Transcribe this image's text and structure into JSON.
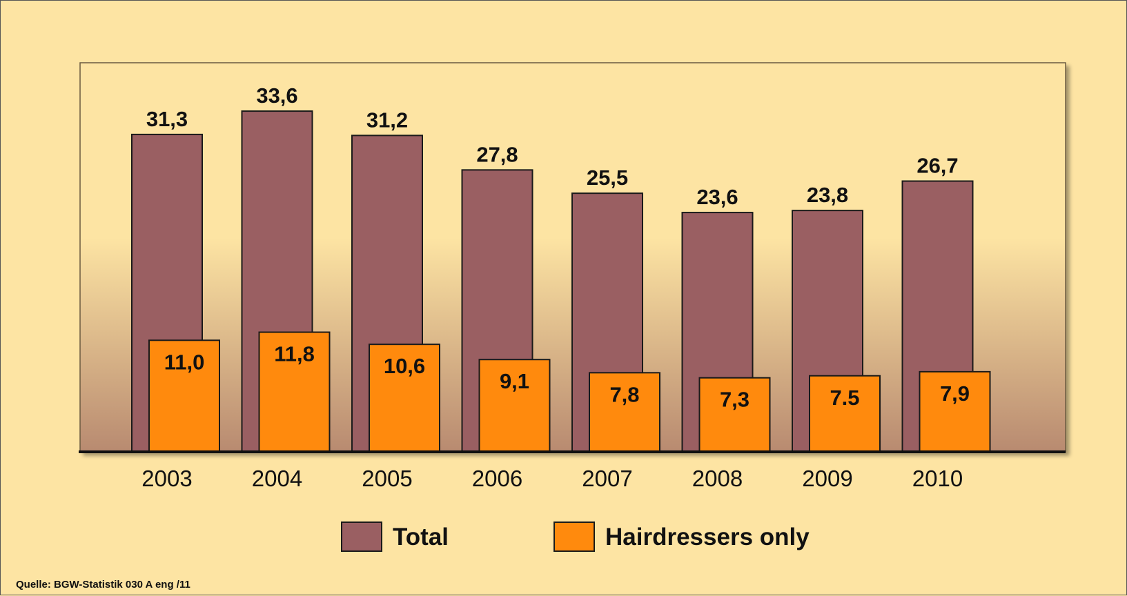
{
  "chart_data": {
    "type": "bar",
    "categories": [
      "2003",
      "2004",
      "2005",
      "2006",
      "2007",
      "2008",
      "2009",
      "2010"
    ],
    "series": [
      {
        "name": "Total",
        "values": [
          31.3,
          33.6,
          31.2,
          27.8,
          25.5,
          23.6,
          23.8,
          26.7
        ],
        "labels": [
          "31,3",
          "33,6",
          "31,2",
          "27,8",
          "25,5",
          "23,6",
          "23,8",
          "26,7"
        ],
        "color": "#9a5f62"
      },
      {
        "name": "Hairdressers only",
        "values": [
          11.0,
          11.8,
          10.6,
          9.1,
          7.8,
          7.3,
          7.5,
          7.9
        ],
        "labels": [
          "11,0",
          "11,8",
          "10,6",
          "9,1",
          "7,8",
          "7,3",
          "7.5",
          "7,9"
        ],
        "color": "#ff8a0d"
      }
    ],
    "title": "",
    "xlabel": "",
    "ylabel": "",
    "ylim": [
      0,
      40
    ],
    "grid": false,
    "legend": "bottom"
  },
  "colors": {
    "background": "#fde4a3",
    "plot_gradient_top": "#fde4a3",
    "plot_gradient_bottom": "#b88a70",
    "bar_outline": "#1a1a1a"
  },
  "footer": {
    "source": "Quelle: BGW-Statistik 030 A eng /11"
  }
}
